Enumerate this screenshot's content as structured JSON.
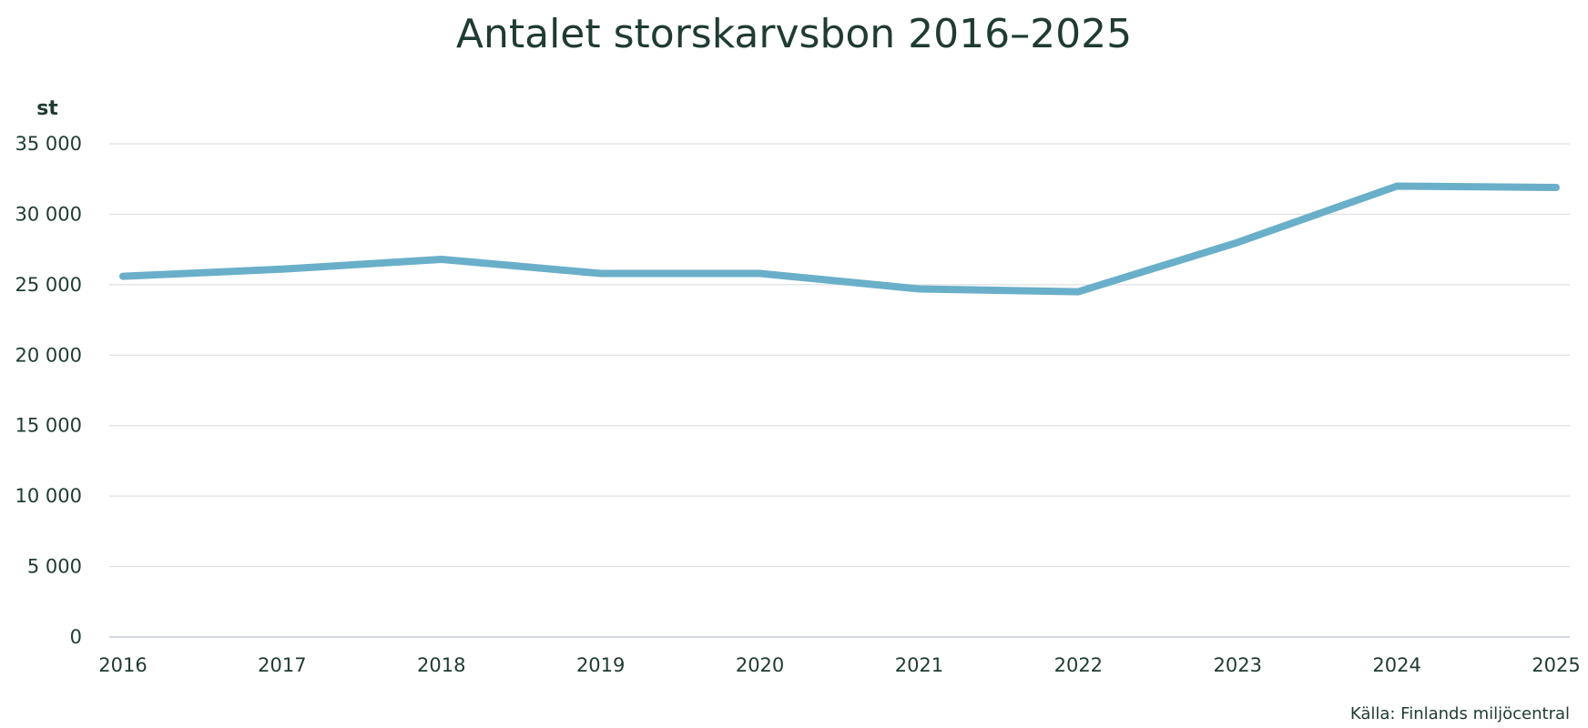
{
  "chart_data": {
    "type": "line",
    "title": "Antalet storskarvsbon 2016–2025",
    "ylabel": "st",
    "xlabel": "",
    "ylim": [
      0,
      35000
    ],
    "y_ticks": [
      0,
      5000,
      10000,
      15000,
      20000,
      25000,
      30000,
      35000
    ],
    "y_tick_labels": [
      "0",
      "5 000",
      "10 000",
      "15 000",
      "20 000",
      "25 000",
      "30 000",
      "35 000"
    ],
    "categories": [
      "2016",
      "2017",
      "2018",
      "2019",
      "2020",
      "2021",
      "2022",
      "2023",
      "2024",
      "2025"
    ],
    "series": [
      {
        "name": "Antalet storskarvsbon",
        "values": [
          25600,
          26100,
          26800,
          25800,
          25800,
          24700,
          24500,
          28000,
          32000,
          31900
        ],
        "color": "#6aafc9"
      }
    ],
    "grid": true,
    "legend": "none",
    "source": "Källa: Finlands miljöcentral"
  },
  "colors": {
    "text": "#1f3b33",
    "grid": "#dde0e4",
    "axis": "#c9cbd8",
    "line": "#6aafc9"
  }
}
